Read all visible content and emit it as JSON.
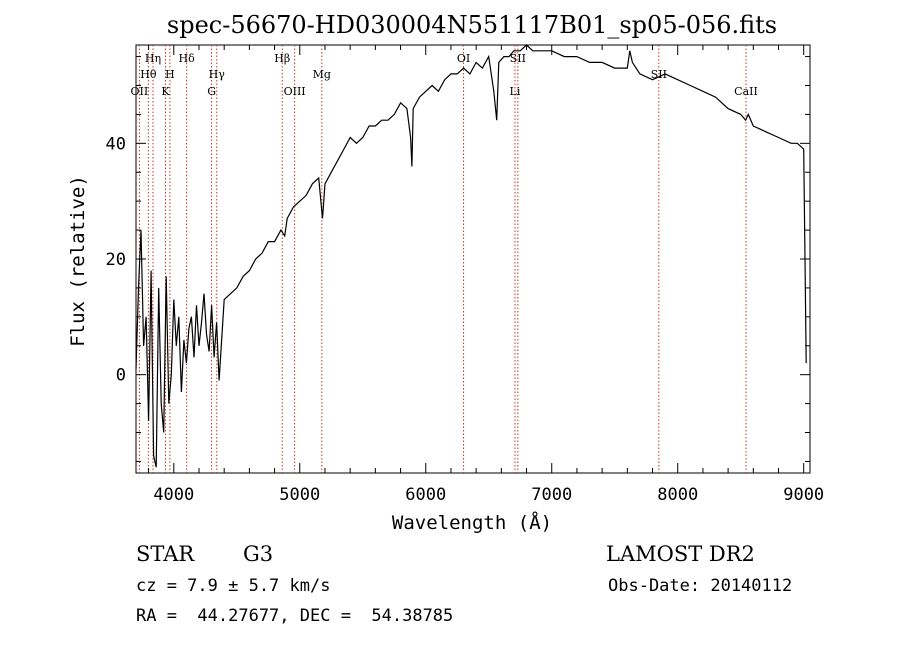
{
  "chart_data": {
    "type": "line",
    "title": "spec-56670-HD030004N551117B01_sp05-056.fits",
    "xlabel": "Wavelength (Å)",
    "ylabel": "Flux (relative)",
    "xlim": [
      3700,
      9050
    ],
    "ylim": [
      -17,
      57
    ],
    "xticks": [
      4000,
      5000,
      6000,
      7000,
      8000,
      9000
    ],
    "xtick_labels": [
      "4000",
      "5000",
      "6000",
      "7000",
      "8000",
      "9000"
    ],
    "yticks": [
      0,
      20,
      40
    ],
    "ytick_labels": [
      "0",
      "20",
      "40"
    ],
    "spectral_lines": [
      {
        "name": "OII",
        "x": 3727,
        "row": 3
      },
      {
        "name": "Hθ",
        "x": 3798,
        "row": 2
      },
      {
        "name": "Hη",
        "x": 3835,
        "row": 1
      },
      {
        "name": "K",
        "x": 3934,
        "row": 3
      },
      {
        "name": "H",
        "x": 3969,
        "row": 2
      },
      {
        "name": "Hδ",
        "x": 4102,
        "row": 1
      },
      {
        "name": "G",
        "x": 4300,
        "row": 3
      },
      {
        "name": "Hγ",
        "x": 4341,
        "row": 2
      },
      {
        "name": "Hβ",
        "x": 4861,
        "row": 1
      },
      {
        "name": "OIII",
        "x": 4959,
        "row": 3
      },
      {
        "name": "Mg",
        "x": 5175,
        "row": 2
      },
      {
        "name": "OI",
        "x": 6300,
        "row": 1
      },
      {
        "name": "Li",
        "x": 6708,
        "row": 3
      },
      {
        "name": "SII",
        "x": 6731,
        "row": 1
      },
      {
        "name": "SII",
        "x": 7850,
        "row": 2
      },
      {
        "name": "CaII",
        "x": 8542,
        "row": 3
      }
    ],
    "series": [
      {
        "name": "spectrum",
        "x": [
          3700,
          3720,
          3740,
          3760,
          3780,
          3800,
          3820,
          3840,
          3860,
          3880,
          3900,
          3920,
          3940,
          3960,
          3980,
          4000,
          4020,
          4040,
          4060,
          4080,
          4100,
          4120,
          4140,
          4160,
          4180,
          4200,
          4220,
          4240,
          4260,
          4280,
          4300,
          4320,
          4340,
          4360,
          4400,
          4450,
          4500,
          4550,
          4600,
          4650,
          4700,
          4750,
          4800,
          4850,
          4880,
          4900,
          4950,
          5000,
          5050,
          5100,
          5150,
          5180,
          5200,
          5250,
          5300,
          5350,
          5400,
          5450,
          5500,
          5550,
          5600,
          5650,
          5700,
          5750,
          5800,
          5850,
          5880,
          5890,
          5900,
          5950,
          6000,
          6050,
          6100,
          6150,
          6200,
          6250,
          6300,
          6350,
          6400,
          6450,
          6500,
          6540,
          6563,
          6580,
          6620,
          6660,
          6700,
          6750,
          6800,
          6850,
          6900,
          6950,
          7000,
          7100,
          7200,
          7300,
          7400,
          7500,
          7600,
          7620,
          7640,
          7700,
          7800,
          7900,
          8000,
          8100,
          8200,
          8300,
          8400,
          8500,
          8540,
          8560,
          8600,
          8700,
          8800,
          8900,
          8950,
          9000,
          9010,
          9020
        ],
        "values": [
          1,
          15,
          25,
          5,
          10,
          -8,
          18,
          -14,
          -16,
          15,
          -5,
          -10,
          17,
          -5,
          0,
          13,
          5,
          10,
          -3,
          6,
          2,
          8,
          10,
          3,
          12,
          5,
          9,
          14,
          7,
          4,
          12,
          3,
          9,
          -1,
          13,
          14,
          15,
          17,
          18,
          20,
          21,
          23,
          23,
          25,
          24,
          27,
          29,
          30,
          31,
          33,
          34,
          27,
          33,
          35,
          37,
          39,
          41,
          40,
          41,
          43,
          43,
          44,
          44,
          45,
          47,
          46,
          41,
          36,
          46,
          48,
          49,
          50,
          49,
          51,
          52,
          52,
          53,
          52,
          54,
          53,
          55,
          49,
          44,
          54,
          55,
          55,
          56,
          56,
          57,
          56,
          56,
          56,
          56,
          55,
          55,
          54,
          54,
          53,
          53,
          56,
          54,
          52,
          51,
          52,
          51,
          50,
          49,
          48,
          46,
          45,
          44,
          45,
          43,
          42,
          41,
          40,
          40,
          39,
          20,
          2
        ]
      }
    ]
  },
  "footer": {
    "object_class": "STAR",
    "subclass": "G3",
    "survey": "LAMOST DR2",
    "cz": "cz = 7.9 ± 5.7 km/s",
    "obs_date": "Obs-Date: 20140112",
    "coords": "RA =  44.27677, DEC =  54.38785"
  }
}
